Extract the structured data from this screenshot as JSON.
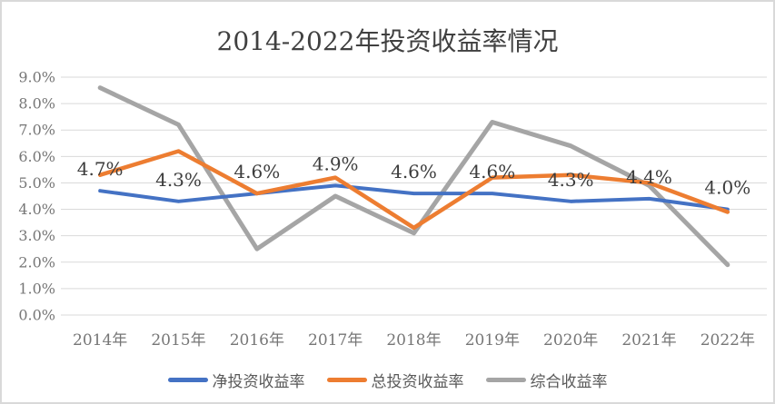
{
  "frame": {
    "background": "#FFFFFF",
    "border_color": "#D9D9D9"
  },
  "chart_data": {
    "type": "line",
    "title": "2014-2022年投资收益率情况",
    "categories": [
      "2014年",
      "2015年",
      "2016年",
      "2017年",
      "2018年",
      "2019年",
      "2020年",
      "2021年",
      "2022年"
    ],
    "series": [
      {
        "name": "净投资收益率",
        "color": "#4472C4",
        "values": [
          4.7,
          4.3,
          4.6,
          4.9,
          4.6,
          4.6,
          4.3,
          4.4,
          4.0
        ],
        "data_labels": [
          "4.7%",
          "4.3%",
          "4.6%",
          "4.9%",
          "4.6%",
          "4.6%",
          "4.3%",
          "4.4%",
          "4.0%"
        ]
      },
      {
        "name": "总投资收益率",
        "color": "#ED7D31",
        "values": [
          5.3,
          6.2,
          4.6,
          5.2,
          3.3,
          5.2,
          5.3,
          5.0,
          3.9
        ]
      },
      {
        "name": "综合收益率",
        "color": "#A5A5A5",
        "values": [
          8.6,
          7.2,
          2.5,
          4.5,
          3.1,
          7.3,
          6.4,
          4.9,
          1.9
        ]
      }
    ],
    "xlabel": "",
    "ylabel": "",
    "ylim": [
      0,
      9
    ],
    "ytick_labels": [
      "0.0%",
      "1.0%",
      "2.0%",
      "3.0%",
      "4.0%",
      "5.0%",
      "6.0%",
      "7.0%",
      "8.0%",
      "9.0%"
    ],
    "grid": true,
    "legend_position": "bottom",
    "colors": {
      "grid": "#D9D9D9",
      "tick_label": "#767676",
      "title": "#404040",
      "data_label": "#3D3D3D",
      "legend_label": "#595959"
    }
  }
}
